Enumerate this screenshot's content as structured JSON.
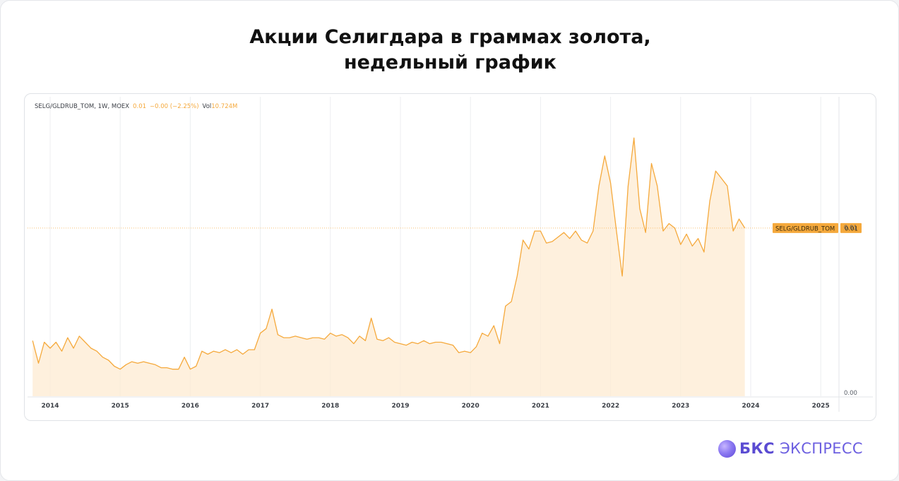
{
  "page": {
    "title_line1": "Акции Селигдара в граммах золота,",
    "title_line2": "недельный график"
  },
  "legend": {
    "symbol": "SELG/GLDRUB_TOM, 1W, MOEX",
    "last": "0.01",
    "change": "−0.00 (−2.25%)",
    "vol_label": "Vol",
    "vol_value": "10.724M"
  },
  "brand": {
    "name": "БКС",
    "sub": "ЭКСПРЕСС",
    "colors": {
      "primary": "#5a4bd2",
      "orb": "#8c79f2"
    }
  },
  "colors": {
    "line": "#f5a93c",
    "area": "#fdebd2",
    "price_tag": "#f5a93c",
    "grid": "#eceef1"
  },
  "chart_data": {
    "type": "area",
    "series": [
      {
        "name": "SELG/GLDRUB_TOM",
        "x": [
          "2013-10",
          "2013-11",
          "2013-12",
          "2014-01",
          "2014-02",
          "2014-03",
          "2014-04",
          "2014-05",
          "2014-06",
          "2014-07",
          "2014-08",
          "2014-09",
          "2014-10",
          "2014-11",
          "2014-12",
          "2015-01",
          "2015-02",
          "2015-03",
          "2015-04",
          "2015-05",
          "2015-06",
          "2015-07",
          "2015-08",
          "2015-09",
          "2015-10",
          "2015-11",
          "2015-12",
          "2016-01",
          "2016-02",
          "2016-03",
          "2016-04",
          "2016-05",
          "2016-06",
          "2016-07",
          "2016-08",
          "2016-09",
          "2016-10",
          "2016-11",
          "2016-12",
          "2017-01",
          "2017-02",
          "2017-03",
          "2017-04",
          "2017-05",
          "2017-06",
          "2017-07",
          "2017-08",
          "2017-09",
          "2017-10",
          "2017-11",
          "2017-12",
          "2018-01",
          "2018-02",
          "2018-03",
          "2018-04",
          "2018-05",
          "2018-06",
          "2018-07",
          "2018-08",
          "2018-09",
          "2018-10",
          "2018-11",
          "2018-12",
          "2019-01",
          "2019-02",
          "2019-03",
          "2019-04",
          "2019-05",
          "2019-06",
          "2019-07",
          "2019-08",
          "2019-09",
          "2019-10",
          "2019-11",
          "2019-12",
          "2020-01",
          "2020-02",
          "2020-03",
          "2020-04",
          "2020-05",
          "2020-06",
          "2020-07",
          "2020-08",
          "2020-09",
          "2020-10",
          "2020-11",
          "2020-12",
          "2021-01",
          "2021-02",
          "2021-03",
          "2021-04",
          "2021-05",
          "2021-06",
          "2021-07",
          "2021-08",
          "2021-09",
          "2021-10",
          "2021-11",
          "2021-12",
          "2022-01",
          "2022-02",
          "2022-03",
          "2022-04",
          "2022-05",
          "2022-06",
          "2022-07",
          "2022-08",
          "2022-09",
          "2022-10",
          "2022-11",
          "2022-12",
          "2023-01",
          "2023-02",
          "2023-03",
          "2023-04",
          "2023-05",
          "2023-06",
          "2023-07",
          "2023-08",
          "2023-09",
          "2023-10",
          "2023-11",
          "2023-12"
        ],
        "values": [
          0.0037,
          0.0022,
          0.0036,
          0.0032,
          0.0036,
          0.003,
          0.0039,
          0.0032,
          0.004,
          0.0036,
          0.0032,
          0.003,
          0.0026,
          0.0024,
          0.002,
          0.0018,
          0.0021,
          0.0023,
          0.0022,
          0.0023,
          0.0022,
          0.0021,
          0.0019,
          0.0019,
          0.0018,
          0.0018,
          0.0026,
          0.0018,
          0.002,
          0.003,
          0.0028,
          0.003,
          0.0029,
          0.0031,
          0.0029,
          0.0031,
          0.0028,
          0.0031,
          0.0031,
          0.0042,
          0.0045,
          0.0058,
          0.0041,
          0.0039,
          0.0039,
          0.004,
          0.0039,
          0.0038,
          0.0039,
          0.0039,
          0.0038,
          0.0042,
          0.004,
          0.0041,
          0.0039,
          0.0035,
          0.004,
          0.0037,
          0.0052,
          0.0038,
          0.0037,
          0.0039,
          0.0036,
          0.0035,
          0.0034,
          0.0036,
          0.0035,
          0.0037,
          0.0035,
          0.0036,
          0.0036,
          0.0035,
          0.0034,
          0.0029,
          0.003,
          0.0029,
          0.0033,
          0.0042,
          0.004,
          0.0047,
          0.0035,
          0.006,
          0.0063,
          0.008,
          0.0104,
          0.0098,
          0.011,
          0.011,
          0.0102,
          0.0103,
          0.0106,
          0.0109,
          0.0105,
          0.011,
          0.0104,
          0.0102,
          0.011,
          0.014,
          0.016,
          0.0142,
          0.011,
          0.008,
          0.014,
          0.0172,
          0.0125,
          0.0109,
          0.0155,
          0.014,
          0.011,
          0.0115,
          0.0112,
          0.0101,
          0.0108,
          0.01,
          0.0105,
          0.0096,
          0.013,
          0.015,
          0.0145,
          0.014,
          0.011,
          0.0118,
          0.0112
        ]
      }
    ],
    "xaxis": {
      "ticks": [
        "2014",
        "2015",
        "2016",
        "2017",
        "2018",
        "2019",
        "2020",
        "2021",
        "2022",
        "2023",
        "2024",
        "2025"
      ]
    },
    "yaxis": {
      "ticks": [
        "0.01",
        "0.00"
      ],
      "side": "right"
    },
    "last_value_label": "0.01",
    "grid": true,
    "legend": "none"
  }
}
